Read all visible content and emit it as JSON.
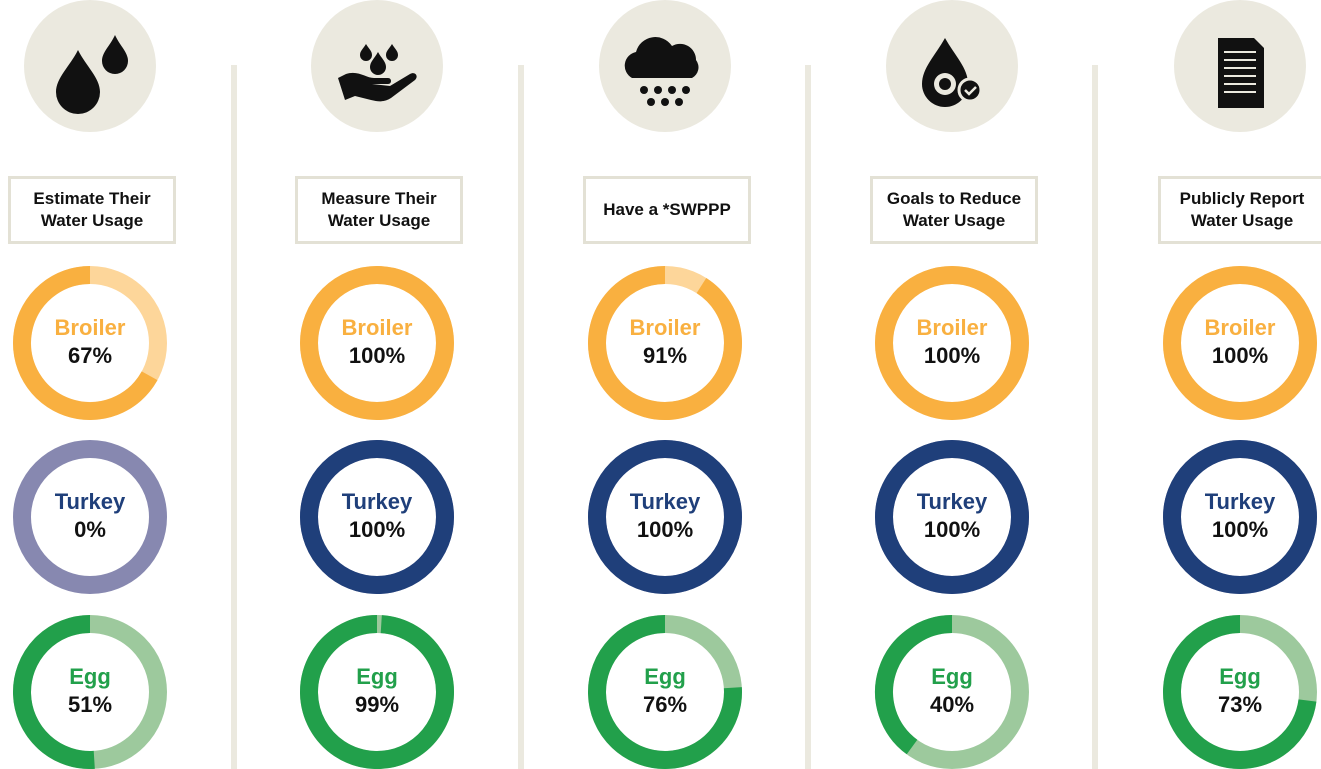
{
  "chart_data": [
    {
      "type": "donut",
      "title": "Estimate Their Water Usage",
      "series": [
        {
          "name": "Broiler",
          "color": "#f9b040",
          "track_color": "#fdd69a",
          "values": [
            67
          ],
          "value_labels": [
            "67%"
          ]
        },
        {
          "name": "Turkey",
          "color": "#1f3f7a",
          "track_color": "#8788b0",
          "values": [
            0
          ],
          "value_labels": [
            "0%"
          ]
        },
        {
          "name": "Egg",
          "color": "#22a04b",
          "track_color": "#9dc99d",
          "values": [
            51
          ],
          "value_labels": [
            "51%"
          ]
        }
      ]
    },
    {
      "type": "donut",
      "title": "Measure Their Water Usage",
      "series": [
        {
          "name": "Broiler",
          "color": "#f9b040",
          "track_color": "#fdd69a",
          "values": [
            100
          ],
          "value_labels": [
            "100%"
          ]
        },
        {
          "name": "Turkey",
          "color": "#1f3f7a",
          "track_color": "#8788b0",
          "values": [
            100
          ],
          "value_labels": [
            "100%"
          ]
        },
        {
          "name": "Egg",
          "color": "#22a04b",
          "track_color": "#9dc99d",
          "values": [
            99
          ],
          "value_labels": [
            "99%"
          ]
        }
      ]
    },
    {
      "type": "donut",
      "title": "Have a *SWPPP",
      "series": [
        {
          "name": "Broiler",
          "color": "#f9b040",
          "track_color": "#fdd69a",
          "values": [
            91
          ],
          "value_labels": [
            "91%"
          ]
        },
        {
          "name": "Turkey",
          "color": "#1f3f7a",
          "track_color": "#8788b0",
          "values": [
            100
          ],
          "value_labels": [
            "100%"
          ]
        },
        {
          "name": "Egg",
          "color": "#22a04b",
          "track_color": "#9dc99d",
          "values": [
            76
          ],
          "value_labels": [
            "76%"
          ]
        }
      ]
    },
    {
      "type": "donut",
      "title": "Goals to Reduce Water Usage",
      "series": [
        {
          "name": "Broiler",
          "color": "#f9b040",
          "track_color": "#fdd69a",
          "values": [
            100
          ],
          "value_labels": [
            "100%"
          ]
        },
        {
          "name": "Turkey",
          "color": "#1f3f7a",
          "track_color": "#8788b0",
          "values": [
            100
          ],
          "value_labels": [
            "100%"
          ]
        },
        {
          "name": "Egg",
          "color": "#22a04b",
          "track_color": "#9dc99d",
          "values": [
            40
          ],
          "value_labels": [
            "40%"
          ]
        }
      ]
    },
    {
      "type": "donut",
      "title": "Publicly Report Water Usage",
      "series": [
        {
          "name": "Broiler",
          "color": "#f9b040",
          "track_color": "#fdd69a",
          "values": [
            100
          ],
          "value_labels": [
            "100%"
          ]
        },
        {
          "name": "Turkey",
          "color": "#1f3f7a",
          "track_color": "#8788b0",
          "values": [
            100
          ],
          "value_labels": [
            "100%"
          ]
        },
        {
          "name": "Egg",
          "color": "#22a04b",
          "track_color": "#9dc99d",
          "values": [
            73
          ],
          "value_labels": [
            "73%"
          ]
        }
      ]
    }
  ]
}
